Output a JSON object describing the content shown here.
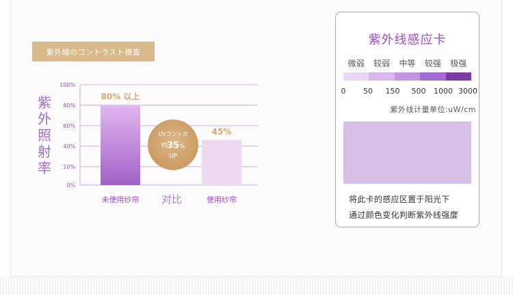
{
  "tag_title": "紫外線のコントラスト検査",
  "y_axis_title": "紫外照射率",
  "center_label": "对比",
  "badge": {
    "line1": "UVコントカ",
    "line2": "约",
    "value": "35",
    "unit": "%",
    "line3": "UP"
  },
  "chart_data": {
    "type": "bar",
    "categories": [
      "未使用纱帘",
      "使用纱帘"
    ],
    "values": [
      80,
      45
    ],
    "value_labels": [
      "80% 以上",
      "45%"
    ],
    "yticks": [
      "100%",
      "80%",
      "60%",
      "40%",
      "10%",
      "0%"
    ],
    "ylim": [
      0,
      100
    ]
  },
  "colors": {
    "bar1_top": "#e1b6f0",
    "bar1_bottom": "#a262c6",
    "bar2": "#eddaf0",
    "accent_gold": "#d2a86a",
    "purple": "#9a4ec2"
  },
  "card": {
    "title": "紫外线感应卡",
    "levels": [
      "微弱",
      "较弱",
      "中等",
      "较强",
      "极强"
    ],
    "level_colors": [
      "#ead9f5",
      "#d8b7ee",
      "#c394e4",
      "#a56bd2",
      "#7c3aa8"
    ],
    "ticks": [
      "0",
      "50",
      "150",
      "500",
      "1000",
      "3000"
    ],
    "unit": "紫外线计量单位:uW/cm",
    "sensor_color": "#d8bfe6",
    "instructions": [
      "将此卡的感应区置于阳光下",
      "通过颜色变化判断紫外线强度"
    ]
  }
}
